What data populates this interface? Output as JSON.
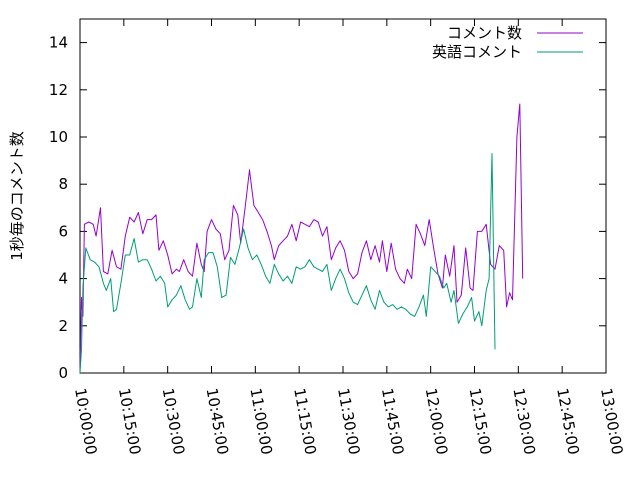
{
  "chart_data": {
    "type": "line",
    "title": "",
    "xlabel": "",
    "ylabel": "1秒毎のコメント数",
    "xlim": [
      "10:00:00",
      "13:00:00"
    ],
    "ylim": [
      0,
      15
    ],
    "x_ticks": [
      "10:00:00",
      "10:15:00",
      "10:30:00",
      "10:45:00",
      "11:00:00",
      "11:15:00",
      "11:30:00",
      "11:45:00",
      "12:00:00",
      "12:15:00",
      "12:30:00",
      "12:45:00",
      "13:00:00"
    ],
    "y_ticks": [
      "0",
      "2",
      "4",
      "6",
      "8",
      "10",
      "12",
      "14"
    ],
    "grid": false,
    "legend_position": "top-right",
    "series": [
      {
        "name": "コメント数",
        "color": "#9400d3",
        "points": [
          [
            "10:00:00",
            0.1
          ],
          [
            "10:00:30",
            3.2
          ],
          [
            "10:01:00",
            2.4
          ],
          [
            "10:01:30",
            6.3
          ],
          [
            "10:03:00",
            6.4
          ],
          [
            "10:04:30",
            6.3
          ],
          [
            "10:05:30",
            5.8
          ],
          [
            "10:07:00",
            7.0
          ],
          [
            "10:08:00",
            4.3
          ],
          [
            "10:09:30",
            4.2
          ],
          [
            "10:11:00",
            5.2
          ],
          [
            "10:12:30",
            4.5
          ],
          [
            "10:14:00",
            4.4
          ],
          [
            "10:15:30",
            5.8
          ],
          [
            "10:17:00",
            6.6
          ],
          [
            "10:18:30",
            6.4
          ],
          [
            "10:20:00",
            6.8
          ],
          [
            "10:21:30",
            5.9
          ],
          [
            "10:23:00",
            6.5
          ],
          [
            "10:24:30",
            6.5
          ],
          [
            "10:26:00",
            6.7
          ],
          [
            "10:27:00",
            5.2
          ],
          [
            "10:28:30",
            5.6
          ],
          [
            "10:30:00",
            5.0
          ],
          [
            "10:31:30",
            4.2
          ],
          [
            "10:33:00",
            4.4
          ],
          [
            "10:34:00",
            4.3
          ],
          [
            "10:35:30",
            4.8
          ],
          [
            "10:37:00",
            4.3
          ],
          [
            "10:38:30",
            4.1
          ],
          [
            "10:40:00",
            5.5
          ],
          [
            "10:41:30",
            4.6
          ],
          [
            "10:42:30",
            4.3
          ],
          [
            "10:43:30",
            6.0
          ],
          [
            "10:45:00",
            6.5
          ],
          [
            "10:46:30",
            6.1
          ],
          [
            "10:48:00",
            5.9
          ],
          [
            "10:49:30",
            4.8
          ],
          [
            "10:51:00",
            5.2
          ],
          [
            "10:52:30",
            7.1
          ],
          [
            "10:54:00",
            6.7
          ],
          [
            "10:55:00",
            5.5
          ],
          [
            "10:56:30",
            7.0
          ],
          [
            "10:58:00",
            8.6
          ],
          [
            "10:59:30",
            7.1
          ],
          [
            "11:01:00",
            6.8
          ],
          [
            "11:02:30",
            6.5
          ],
          [
            "11:04:00",
            6.0
          ],
          [
            "11:05:30",
            5.4
          ],
          [
            "11:06:30",
            4.8
          ],
          [
            "11:08:00",
            5.4
          ],
          [
            "11:09:30",
            5.6
          ],
          [
            "11:11:00",
            5.8
          ],
          [
            "11:12:30",
            6.3
          ],
          [
            "11:14:00",
            5.6
          ],
          [
            "11:15:30",
            6.4
          ],
          [
            "11:17:00",
            6.3
          ],
          [
            "11:18:30",
            6.2
          ],
          [
            "11:20:00",
            6.5
          ],
          [
            "11:21:30",
            6.4
          ],
          [
            "11:23:00",
            5.8
          ],
          [
            "11:24:30",
            6.2
          ],
          [
            "11:26:00",
            4.8
          ],
          [
            "11:27:30",
            5.3
          ],
          [
            "11:29:00",
            5.6
          ],
          [
            "11:30:30",
            5.2
          ],
          [
            "11:32:00",
            4.3
          ],
          [
            "11:33:30",
            4.0
          ],
          [
            "11:35:00",
            4.2
          ],
          [
            "11:36:30",
            5.1
          ],
          [
            "11:38:00",
            5.6
          ],
          [
            "11:39:30",
            4.8
          ],
          [
            "11:41:00",
            5.4
          ],
          [
            "11:42:30",
            4.7
          ],
          [
            "11:43:30",
            5.6
          ],
          [
            "11:45:00",
            4.3
          ],
          [
            "11:46:30",
            5.5
          ],
          [
            "11:48:00",
            4.4
          ],
          [
            "11:49:30",
            4.0
          ],
          [
            "11:51:00",
            3.8
          ],
          [
            "11:52:00",
            4.4
          ],
          [
            "11:53:30",
            4.0
          ],
          [
            "11:55:00",
            6.3
          ],
          [
            "11:56:30",
            5.9
          ],
          [
            "11:58:00",
            5.4
          ],
          [
            "11:59:30",
            6.5
          ],
          [
            "12:01:00",
            5.3
          ],
          [
            "12:02:30",
            4.2
          ],
          [
            "12:04:00",
            3.6
          ],
          [
            "12:05:00",
            5.0
          ],
          [
            "12:06:30",
            4.1
          ],
          [
            "12:08:00",
            5.4
          ],
          [
            "12:09:00",
            3.0
          ],
          [
            "12:10:30",
            3.3
          ],
          [
            "12:12:00",
            5.3
          ],
          [
            "12:13:30",
            3.6
          ],
          [
            "12:14:30",
            3.5
          ],
          [
            "12:16:00",
            6.0
          ],
          [
            "12:17:30",
            6.0
          ],
          [
            "12:19:00",
            6.3
          ],
          [
            "12:20:30",
            4.6
          ],
          [
            "12:22:00",
            4.4
          ],
          [
            "12:23:30",
            5.4
          ],
          [
            "12:25:00",
            5.2
          ],
          [
            "12:26:00",
            2.8
          ],
          [
            "12:27:00",
            3.4
          ],
          [
            "12:28:00",
            3.1
          ],
          [
            "12:29:30",
            10.0
          ],
          [
            "12:30:30",
            11.4
          ],
          [
            "12:31:30",
            4.0
          ]
        ]
      },
      {
        "name": "英語コメント",
        "color": "#009e73",
        "points": [
          [
            "10:00:00",
            0.0
          ],
          [
            "10:00:30",
            1.0
          ],
          [
            "10:01:00",
            3.6
          ],
          [
            "10:02:00",
            5.3
          ],
          [
            "10:03:30",
            4.8
          ],
          [
            "10:05:00",
            4.7
          ],
          [
            "10:06:30",
            4.5
          ],
          [
            "10:08:00",
            3.8
          ],
          [
            "10:09:00",
            3.5
          ],
          [
            "10:10:30",
            4.0
          ],
          [
            "10:11:30",
            2.6
          ],
          [
            "10:12:30",
            2.7
          ],
          [
            "10:14:00",
            3.8
          ],
          [
            "10:15:30",
            5.0
          ],
          [
            "10:17:00",
            5.0
          ],
          [
            "10:18:30",
            5.7
          ],
          [
            "10:20:00",
            4.7
          ],
          [
            "10:21:30",
            4.8
          ],
          [
            "10:23:00",
            4.8
          ],
          [
            "10:24:30",
            4.4
          ],
          [
            "10:26:00",
            3.9
          ],
          [
            "10:27:30",
            4.1
          ],
          [
            "10:29:00",
            3.8
          ],
          [
            "10:30:00",
            2.8
          ],
          [
            "10:31:30",
            3.1
          ],
          [
            "10:33:00",
            3.3
          ],
          [
            "10:34:30",
            3.7
          ],
          [
            "10:36:00",
            3.1
          ],
          [
            "10:37:30",
            2.7
          ],
          [
            "10:38:30",
            2.8
          ],
          [
            "10:40:00",
            4.0
          ],
          [
            "10:41:30",
            3.2
          ],
          [
            "10:42:30",
            4.8
          ],
          [
            "10:44:00",
            5.1
          ],
          [
            "10:45:30",
            5.1
          ],
          [
            "10:47:00",
            4.5
          ],
          [
            "10:48:30",
            3.2
          ],
          [
            "10:50:00",
            3.3
          ],
          [
            "10:51:30",
            4.9
          ],
          [
            "10:53:00",
            4.6
          ],
          [
            "10:54:30",
            5.3
          ],
          [
            "10:56:00",
            6.1
          ],
          [
            "10:57:30",
            5.3
          ],
          [
            "10:59:00",
            4.8
          ],
          [
            "11:00:30",
            5.0
          ],
          [
            "11:02:00",
            4.6
          ],
          [
            "11:03:30",
            4.1
          ],
          [
            "11:05:00",
            3.8
          ],
          [
            "11:06:30",
            4.6
          ],
          [
            "11:08:00",
            4.2
          ],
          [
            "11:09:30",
            3.9
          ],
          [
            "11:11:00",
            4.1
          ],
          [
            "11:12:30",
            3.8
          ],
          [
            "11:14:00",
            4.5
          ],
          [
            "11:15:30",
            4.4
          ],
          [
            "11:17:00",
            4.5
          ],
          [
            "11:18:30",
            4.8
          ],
          [
            "11:20:00",
            4.5
          ],
          [
            "11:21:30",
            4.4
          ],
          [
            "11:23:00",
            4.3
          ],
          [
            "11:24:30",
            4.6
          ],
          [
            "11:26:00",
            3.5
          ],
          [
            "11:27:30",
            4.0
          ],
          [
            "11:29:00",
            4.4
          ],
          [
            "11:30:30",
            4.0
          ],
          [
            "11:32:00",
            3.4
          ],
          [
            "11:33:30",
            3.0
          ],
          [
            "11:35:00",
            2.9
          ],
          [
            "11:36:30",
            3.3
          ],
          [
            "11:38:00",
            3.7
          ],
          [
            "11:39:30",
            3.1
          ],
          [
            "11:41:00",
            2.7
          ],
          [
            "11:42:30",
            3.5
          ],
          [
            "11:44:00",
            3.0
          ],
          [
            "11:45:30",
            2.8
          ],
          [
            "11:47:00",
            2.9
          ],
          [
            "11:48:30",
            2.7
          ],
          [
            "11:50:00",
            2.8
          ],
          [
            "11:51:30",
            2.7
          ],
          [
            "11:53:00",
            2.5
          ],
          [
            "11:54:30",
            2.4
          ],
          [
            "11:56:00",
            2.8
          ],
          [
            "11:57:30",
            3.3
          ],
          [
            "11:58:30",
            2.4
          ],
          [
            "12:00:00",
            4.5
          ],
          [
            "12:01:30",
            4.3
          ],
          [
            "12:03:00",
            4.1
          ],
          [
            "12:04:30",
            3.6
          ],
          [
            "12:05:30",
            3.8
          ],
          [
            "12:07:00",
            3.0
          ],
          [
            "12:08:00",
            3.5
          ],
          [
            "12:09:30",
            2.1
          ],
          [
            "12:11:00",
            2.5
          ],
          [
            "12:12:30",
            2.8
          ],
          [
            "12:14:00",
            3.2
          ],
          [
            "12:15:00",
            2.2
          ],
          [
            "12:16:30",
            2.6
          ],
          [
            "12:17:30",
            2.0
          ],
          [
            "12:19:00",
            3.5
          ],
          [
            "12:20:00",
            4.0
          ],
          [
            "12:21:00",
            9.3
          ],
          [
            "12:22:00",
            1.0
          ]
        ]
      }
    ]
  }
}
